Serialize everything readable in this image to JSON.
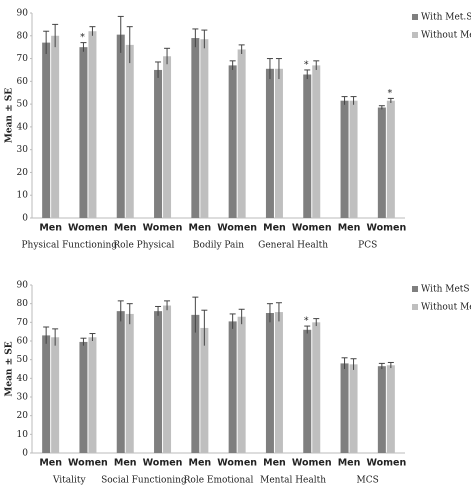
{
  "chart_data": [
    {
      "type": "bar",
      "y_label": "Mean ± SE",
      "groups": [
        "Physical Functioning",
        "Role Physical",
        "Bodily Pain",
        "General Health",
        "PCS"
      ],
      "categories": [
        "Men",
        "Women",
        "Men",
        "Women",
        "Men",
        "Women",
        "Men",
        "Women",
        "Men",
        "Women"
      ],
      "series": [
        {
          "name": "With Met.S",
          "color": "#7f7f7f",
          "values": [
            77,
            75,
            80.5,
            65,
            79,
            67,
            65.5,
            63,
            51.5,
            48.5
          ],
          "errors": [
            5,
            2,
            8,
            3.5,
            4,
            2,
            4.5,
            2,
            1.8,
            0.8
          ]
        },
        {
          "name": "Without Met.S",
          "color": "#bfbfbf",
          "values": [
            80,
            82,
            76,
            71,
            78.5,
            74,
            65.5,
            67,
            51.5,
            51.5
          ],
          "errors": [
            5,
            2,
            8,
            3.5,
            4,
            2,
            4.5,
            2,
            1.8,
            1
          ]
        }
      ],
      "annotations": [
        {
          "text": "*",
          "series": 0,
          "index": 1
        },
        {
          "text": "*",
          "series": 0,
          "index": 7
        },
        {
          "text": "*",
          "series": 1,
          "index": 9
        }
      ],
      "ylim": [
        0,
        90
      ],
      "yticks": [
        0,
        10,
        20,
        30,
        40,
        50,
        60,
        70,
        80,
        90
      ],
      "legend": "right"
    },
    {
      "type": "bar",
      "y_label": "Mean ± SE",
      "groups": [
        "Vitality",
        "Social Functioning",
        "Role Emotional",
        "Mental Health",
        "MCS"
      ],
      "categories": [
        "Men",
        "Women",
        "Men",
        "Women",
        "Men",
        "Women",
        "Men",
        "Women",
        "Men",
        "Women"
      ],
      "series": [
        {
          "name": "With MetS",
          "color": "#7f7f7f",
          "values": [
            63,
            59.5,
            76,
            76,
            74,
            70.5,
            75,
            66,
            48,
            46.5
          ],
          "errors": [
            4.5,
            2,
            5.5,
            2.5,
            9.5,
            4,
            5,
            2,
            3,
            1.5
          ]
        },
        {
          "name": "Without MetS",
          "color": "#bfbfbf",
          "values": [
            62,
            62,
            74.5,
            79,
            67,
            73,
            75.5,
            70,
            47.5,
            47
          ],
          "errors": [
            4.5,
            2,
            5.5,
            2.5,
            9.5,
            4,
            5,
            2,
            3,
            1.5
          ]
        }
      ],
      "annotations": [
        {
          "text": "*",
          "series": 0,
          "index": 7
        }
      ],
      "ylim": [
        0,
        90
      ],
      "yticks": [
        0,
        10,
        20,
        30,
        40,
        50,
        60,
        70,
        80,
        90
      ],
      "legend": "right"
    }
  ]
}
